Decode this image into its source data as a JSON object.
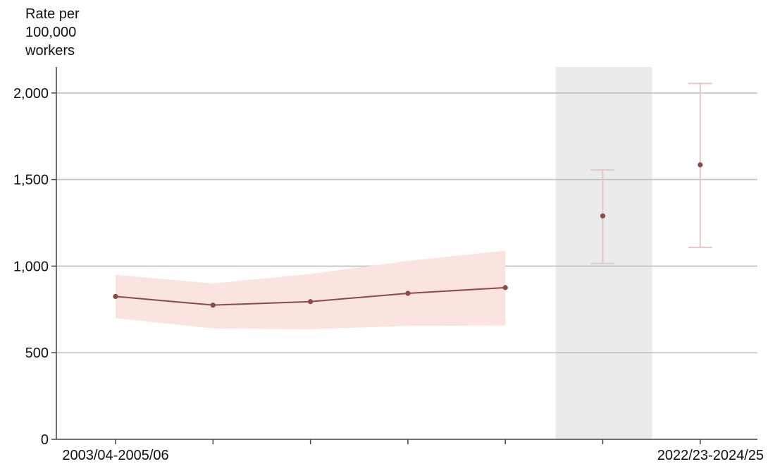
{
  "chart_data": {
    "type": "line",
    "ylabel": [
      "Rate per",
      "100,000",
      "workers"
    ],
    "ylim": [
      0,
      2150
    ],
    "yticks": [
      0,
      500,
      1000,
      1500,
      2000
    ],
    "ytick_labels": [
      "0",
      "500",
      "1,000",
      "1,500",
      "2,000"
    ],
    "xtick_labels": [
      "2003/04-2005/06",
      "",
      "",
      "",
      "",
      "",
      "2022/23-2024/25"
    ],
    "grid": "horizontal",
    "shaded_period_index": 5,
    "series": [
      {
        "x_index": [
          0,
          1,
          2,
          3,
          4
        ],
        "values": [
          825,
          775,
          795,
          843,
          876
        ],
        "lower": [
          700,
          640,
          635,
          655,
          657
        ],
        "upper": [
          950,
          900,
          955,
          1030,
          1090
        ]
      }
    ],
    "error_bars": [
      {
        "x_index": 5,
        "value": 1290,
        "lower": 1015,
        "upper": 1555
      },
      {
        "x_index": 6,
        "value": 1585,
        "lower": 1108,
        "upper": 2055
      }
    ],
    "colors": {
      "line": "#8b4a4a",
      "band": "#fbe3df",
      "error_bar": "#e2c9c6",
      "shade": "#ebebeb",
      "grid": "#bdbdbd",
      "axis": "#444444"
    }
  }
}
